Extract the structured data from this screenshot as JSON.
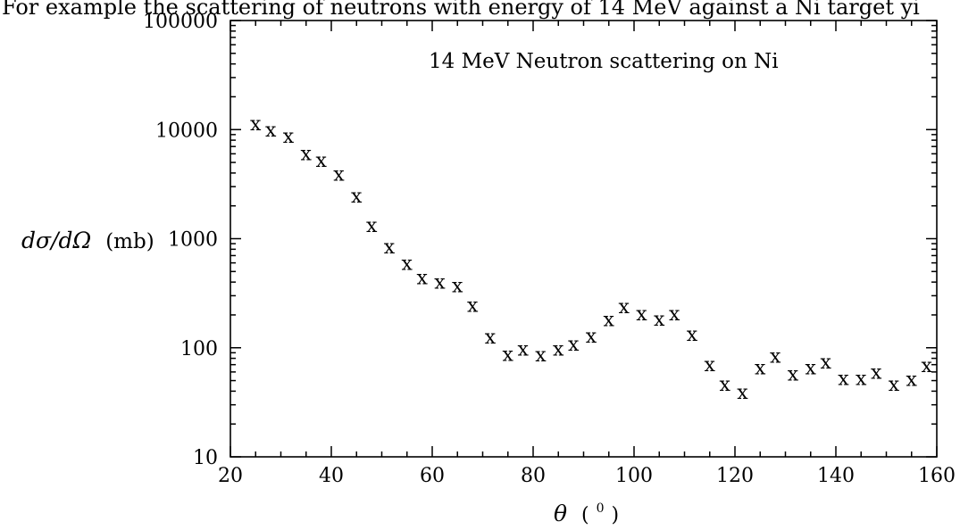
{
  "header_fragment": "For example the scattering of neutrons with energy of 14 MeV against a Ni target yi",
  "chart_data": {
    "type": "scatter",
    "title": "14 MeV Neutron scattering on Ni",
    "xlabel": {
      "symbol": "θ",
      "unit_open": "(",
      "unit_base": "0",
      "unit_close": ")"
    },
    "ylabel": {
      "symbol": "dσ/dΩ",
      "unit": "(mb)"
    },
    "marker": "x",
    "xlim": [
      20,
      160
    ],
    "ylim": [
      10,
      100000
    ],
    "yscale": "log",
    "x_ticks": [
      "20",
      "40",
      "60",
      "80",
      "100",
      "120",
      "140",
      "160"
    ],
    "y_ticks": [
      "10",
      "100",
      "1000",
      "10000",
      "100000"
    ],
    "grid": false,
    "series": [
      {
        "x": [
          25,
          28,
          31.5,
          35,
          38,
          41.5,
          45,
          48,
          51.5,
          55,
          58,
          61.5,
          65,
          68,
          71.5,
          75,
          78,
          81.5,
          85,
          88,
          91.5,
          95,
          98,
          101.5,
          105,
          108,
          111.5,
          115,
          118,
          121.5,
          125,
          128,
          131.5,
          135,
          138,
          141.5,
          145,
          148,
          151.5,
          155,
          158
        ],
        "y": [
          11000,
          9700,
          8500,
          5900,
          5100,
          3800,
          2400,
          1290,
          820,
          580,
          430,
          390,
          360,
          240,
          122,
          85,
          95,
          84,
          95,
          105,
          125,
          176,
          232,
          200,
          178,
          200,
          130,
          68,
          45,
          38,
          64,
          82,
          56,
          64,
          72,
          51,
          51,
          58,
          45,
          50,
          67
        ]
      }
    ]
  }
}
